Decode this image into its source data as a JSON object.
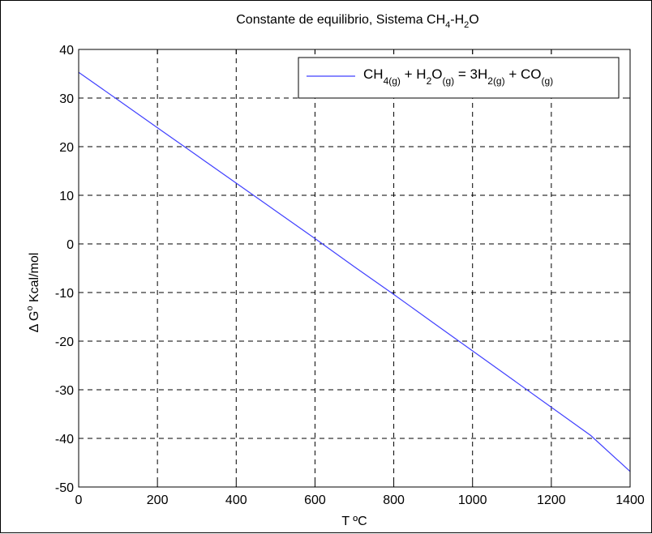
{
  "chart_data": {
    "type": "line",
    "title": {
      "prefix": "Constante de equilibrio, Sistema CH",
      "sub1": "4",
      "mid": "-H",
      "sub2": "2",
      "suffix": "O"
    },
    "xlabel": "T ºC",
    "ylabel": "Δ G",
    "ylabel_sup": "o",
    "ylabel_rest": " Kcal/mol",
    "xlim": [
      0,
      1400
    ],
    "ylim": [
      -50,
      40
    ],
    "xticks": [
      0,
      200,
      400,
      600,
      800,
      1000,
      1200,
      1400
    ],
    "yticks": [
      -50,
      -40,
      -30,
      -20,
      -10,
      0,
      10,
      20,
      30,
      40
    ],
    "grid": true,
    "legend_position": "top-right",
    "series": [
      {
        "name_parts": [
          {
            "t": "CH",
            "s": ""
          },
          {
            "t": "4(g)",
            "s": "sub"
          },
          {
            "t": " + H",
            "s": ""
          },
          {
            "t": "2",
            "s": "sub"
          },
          {
            "t": "O",
            "s": ""
          },
          {
            "t": "(g)",
            "s": "sub"
          },
          {
            "t": " = 3H",
            "s": ""
          },
          {
            "t": "2(g)",
            "s": "sub"
          },
          {
            "t": " + CO",
            "s": ""
          },
          {
            "t": "(g)",
            "s": "sub"
          }
        ],
        "color": "#4040ff",
        "x": [
          0,
          100,
          200,
          300,
          400,
          500,
          600,
          700,
          800,
          900,
          1000,
          1100,
          1200,
          1300,
          1400
        ],
        "y": [
          35.3,
          29.6,
          23.9,
          18.2,
          12.5,
          6.8,
          1.1,
          -4.7,
          -10.4,
          -16.2,
          -22.0,
          -27.8,
          -33.6,
          -39.4,
          -46.8
        ]
      }
    ]
  }
}
